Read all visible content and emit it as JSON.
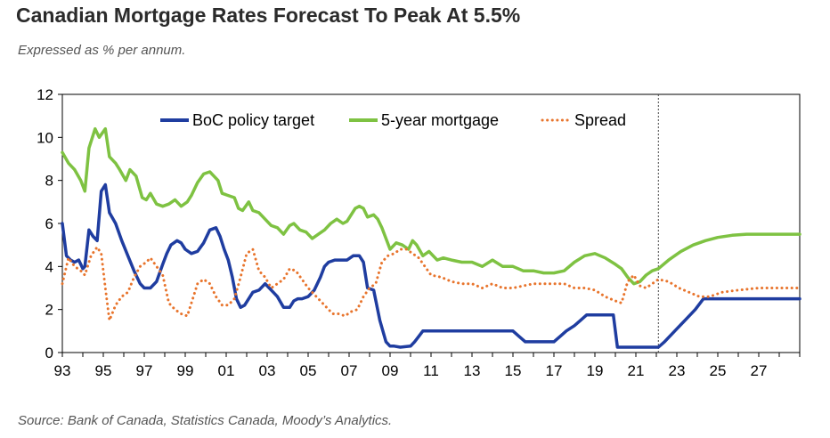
{
  "title": "Canadian Mortgage Rates Forecast To Peak At 5.5%",
  "subtitle": "Expressed as % per annum.",
  "source": "Source: Bank of Canada, Statistics Canada, Moody’s Analytics.",
  "chart_data": {
    "type": "line",
    "title": "Canadian Mortgage Rates Forecast To Peak At 5.5%",
    "xlabel": "",
    "ylabel": "",
    "xlim": [
      1993,
      2029
    ],
    "ylim": [
      0,
      12
    ],
    "yticks": [
      0,
      2,
      4,
      6,
      8,
      10,
      12
    ],
    "xtick_labels": [
      "93",
      "95",
      "97",
      "99",
      "01",
      "03",
      "05",
      "07",
      "09",
      "11",
      "13",
      "15",
      "17",
      "19",
      "21",
      "23",
      "25",
      "27"
    ],
    "forecast_start": 2022.1,
    "legend_position": "top",
    "grid": false,
    "series": [
      {
        "name": "BoC policy target",
        "color": "#1f3da0",
        "style": "solid",
        "x": [
          1993,
          1993.2,
          1993.4,
          1993.6,
          1993.8,
          1994,
          1994.1,
          1994.3,
          1994.5,
          1994.7,
          1994.9,
          1995.1,
          1995.3,
          1995.6,
          1995.9,
          1996.2,
          1996.5,
          1996.8,
          1997,
          1997.3,
          1997.6,
          1997.9,
          1998.1,
          1998.3,
          1998.6,
          1998.8,
          1999,
          1999.3,
          1999.6,
          1999.9,
          2000.2,
          2000.5,
          2000.7,
          2000.9,
          2001.1,
          2001.3,
          2001.5,
          2001.7,
          2001.9,
          2002.1,
          2002.3,
          2002.6,
          2002.9,
          2003.1,
          2003.3,
          2003.5,
          2003.8,
          2004.1,
          2004.3,
          2004.5,
          2004.7,
          2005,
          2005.3,
          2005.6,
          2005.8,
          2006,
          2006.3,
          2006.6,
          2006.9,
          2007.2,
          2007.5,
          2007.7,
          2007.9,
          2008.2,
          2008.5,
          2008.8,
          2009,
          2009.2,
          2009.5,
          2010,
          2010.2,
          2010.4,
          2010.6,
          2010.8,
          2011,
          2012,
          2013,
          2014,
          2014.5,
          2015,
          2015.3,
          2015.6,
          2016,
          2017,
          2017.3,
          2017.6,
          2018,
          2018.3,
          2018.6,
          2018.9,
          2019.5,
          2019.9,
          2020.1,
          2020.3,
          2021,
          2021.5,
          2022.1,
          2022.4,
          2022.9,
          2023.4,
          2023.9,
          2024.3,
          2025,
          2026,
          2027,
          2028,
          2029
        ],
        "y": [
          6.0,
          4.5,
          4.3,
          4.2,
          4.3,
          3.9,
          4.0,
          5.7,
          5.4,
          5.2,
          7.5,
          7.8,
          6.5,
          6.0,
          5.2,
          4.5,
          3.8,
          3.2,
          3.0,
          3.0,
          3.3,
          4.1,
          4.6,
          5.0,
          5.2,
          5.1,
          4.8,
          4.6,
          4.7,
          5.1,
          5.7,
          5.8,
          5.4,
          4.8,
          4.3,
          3.5,
          2.5,
          2.1,
          2.2,
          2.5,
          2.8,
          2.9,
          3.2,
          3.0,
          2.8,
          2.6,
          2.1,
          2.1,
          2.4,
          2.5,
          2.5,
          2.6,
          2.9,
          3.5,
          4.0,
          4.2,
          4.3,
          4.3,
          4.3,
          4.5,
          4.5,
          4.2,
          3.0,
          2.9,
          1.5,
          0.5,
          0.3,
          0.3,
          0.25,
          0.3,
          0.5,
          0.75,
          1.0,
          1.0,
          1.0,
          1.0,
          1.0,
          1.0,
          1.0,
          1.0,
          0.75,
          0.5,
          0.5,
          0.5,
          0.75,
          1.0,
          1.25,
          1.5,
          1.75,
          1.75,
          1.75,
          1.75,
          0.25,
          0.25,
          0.25,
          0.25,
          0.25,
          0.5,
          1.0,
          1.5,
          2.0,
          2.5,
          2.5,
          2.5,
          2.5,
          2.5,
          2.5
        ]
      },
      {
        "name": "5-year mortgage",
        "color": "#7ec242",
        "style": "solid",
        "x": [
          1993,
          1993.3,
          1993.6,
          1993.9,
          1994.1,
          1994.3,
          1994.6,
          1994.8,
          1995.1,
          1995.3,
          1995.6,
          1995.8,
          1996.1,
          1996.3,
          1996.6,
          1996.9,
          1997.1,
          1997.3,
          1997.6,
          1997.9,
          1998.2,
          1998.5,
          1998.8,
          1999.1,
          1999.3,
          1999.6,
          1999.9,
          2000.2,
          2000.4,
          2000.6,
          2000.8,
          2001.1,
          2001.4,
          2001.6,
          2001.8,
          2002.1,
          2002.3,
          2002.6,
          2002.9,
          2003.2,
          2003.5,
          2003.8,
          2004.1,
          2004.3,
          2004.6,
          2004.9,
          2005.2,
          2005.5,
          2005.8,
          2006.1,
          2006.4,
          2006.7,
          2006.9,
          2007.1,
          2007.3,
          2007.5,
          2007.7,
          2007.9,
          2008.2,
          2008.4,
          2008.6,
          2008.8,
          2009,
          2009.3,
          2009.6,
          2009.9,
          2010.1,
          2010.3,
          2010.6,
          2010.9,
          2011.3,
          2011.6,
          2012,
          2012.5,
          2013,
          2013.5,
          2014,
          2014.5,
          2015,
          2015.5,
          2016,
          2016.5,
          2017,
          2017.5,
          2018,
          2018.5,
          2019,
          2019.5,
          2020,
          2020.3,
          2020.6,
          2020.9,
          2021.2,
          2021.5,
          2021.8,
          2022.1,
          2022.6,
          2023.2,
          2023.8,
          2024.4,
          2025,
          2025.7,
          2026.4,
          2027,
          2028,
          2029
        ],
        "y": [
          9.3,
          8.8,
          8.5,
          8.0,
          7.5,
          9.5,
          10.4,
          10.0,
          10.4,
          9.1,
          8.8,
          8.5,
          8.0,
          8.5,
          8.2,
          7.2,
          7.1,
          7.4,
          6.9,
          6.8,
          6.9,
          7.1,
          6.8,
          7.0,
          7.3,
          7.9,
          8.3,
          8.4,
          8.2,
          8.0,
          7.4,
          7.3,
          7.2,
          6.7,
          6.6,
          7.0,
          6.6,
          6.5,
          6.2,
          5.9,
          5.8,
          5.5,
          5.9,
          6.0,
          5.7,
          5.6,
          5.3,
          5.5,
          5.7,
          6.0,
          6.2,
          6.0,
          6.1,
          6.4,
          6.7,
          6.8,
          6.7,
          6.3,
          6.4,
          6.2,
          5.8,
          5.3,
          4.8,
          5.1,
          5.0,
          4.8,
          5.2,
          5.0,
          4.5,
          4.7,
          4.3,
          4.4,
          4.3,
          4.2,
          4.2,
          4.0,
          4.3,
          4.0,
          4.0,
          3.8,
          3.8,
          3.7,
          3.7,
          3.8,
          4.2,
          4.5,
          4.6,
          4.4,
          4.1,
          3.9,
          3.5,
          3.2,
          3.3,
          3.6,
          3.8,
          3.9,
          4.3,
          4.7,
          5.0,
          5.2,
          5.35,
          5.45,
          5.5,
          5.5,
          5.5,
          5.5
        ]
      },
      {
        "name": "Spread",
        "color": "#e8742c",
        "style": "dotted",
        "x": [
          1993,
          1993.3,
          1993.6,
          1993.9,
          1994.1,
          1994.4,
          1994.7,
          1994.9,
          1995.1,
          1995.3,
          1995.6,
          1995.9,
          1996.2,
          1996.5,
          1996.8,
          1997.1,
          1997.3,
          1997.6,
          1997.9,
          1998.2,
          1998.5,
          1998.8,
          1999.1,
          1999.3,
          1999.6,
          1999.9,
          2000.2,
          2000.5,
          2000.8,
          2001.1,
          2001.4,
          2001.7,
          2002,
          2002.3,
          2002.6,
          2002.9,
          2003.2,
          2003.5,
          2003.8,
          2004.1,
          2004.4,
          2004.7,
          2005,
          2005.3,
          2005.6,
          2005.9,
          2006.2,
          2006.5,
          2006.8,
          2007.1,
          2007.4,
          2007.7,
          2008,
          2008.3,
          2008.6,
          2008.9,
          2009.2,
          2009.5,
          2009.8,
          2010.1,
          2010.4,
          2010.7,
          2011,
          2011.5,
          2012,
          2012.5,
          2013,
          2013.5,
          2014,
          2014.5,
          2015,
          2015.5,
          2016,
          2016.5,
          2017,
          2017.5,
          2018,
          2018.5,
          2019,
          2019.5,
          2020,
          2020.3,
          2020.6,
          2020.9,
          2021.2,
          2021.5,
          2021.8,
          2022.1,
          2022.6,
          2023.1,
          2023.6,
          2024.1,
          2024.6,
          2025.2,
          2026,
          2027,
          2028,
          2029
        ],
        "y": [
          3.2,
          4.4,
          4.0,
          3.8,
          3.6,
          4.5,
          4.9,
          4.6,
          3.0,
          1.5,
          2.2,
          2.6,
          2.8,
          3.5,
          4.0,
          4.2,
          4.4,
          4.0,
          3.6,
          2.3,
          2.0,
          1.8,
          1.7,
          2.3,
          3.2,
          3.4,
          3.2,
          2.6,
          2.2,
          2.2,
          2.5,
          3.5,
          4.6,
          4.8,
          3.8,
          3.5,
          3.0,
          3.2,
          3.4,
          3.9,
          3.8,
          3.4,
          3.0,
          2.7,
          2.4,
          2.1,
          1.8,
          1.8,
          1.7,
          1.9,
          2.0,
          2.6,
          3.0,
          3.2,
          4.2,
          4.5,
          4.6,
          4.8,
          4.8,
          4.6,
          4.4,
          4.0,
          3.6,
          3.5,
          3.3,
          3.2,
          3.2,
          3.0,
          3.2,
          3.0,
          3.0,
          3.1,
          3.2,
          3.2,
          3.2,
          3.2,
          3.0,
          3.0,
          2.9,
          2.6,
          2.4,
          2.3,
          3.3,
          3.6,
          3.1,
          3.0,
          3.2,
          3.4,
          3.3,
          3.0,
          2.8,
          2.6,
          2.6,
          2.8,
          2.9,
          3.0,
          3.0,
          3.0
        ]
      }
    ]
  }
}
